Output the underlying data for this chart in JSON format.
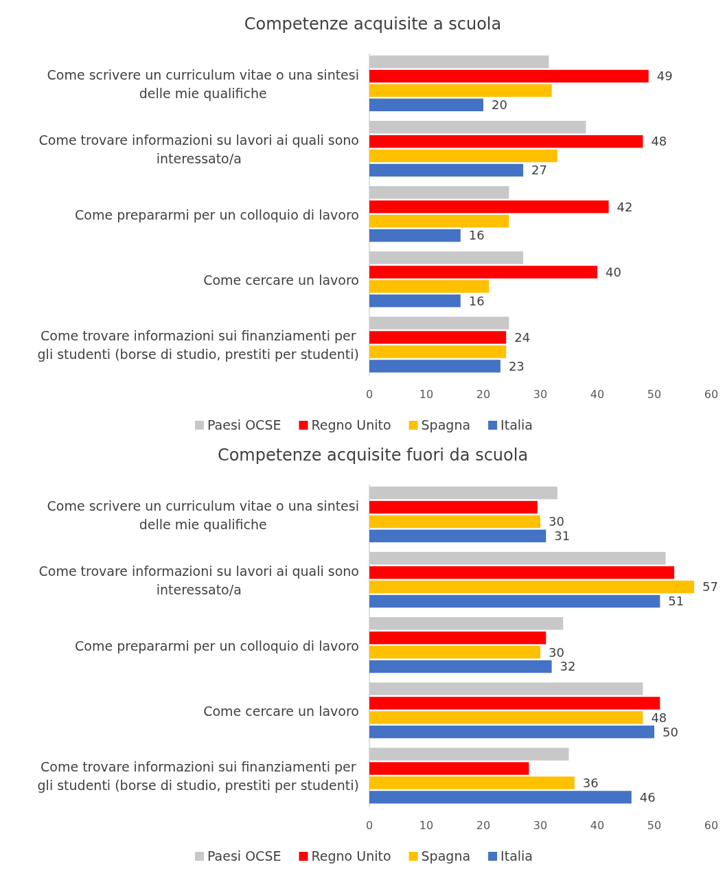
{
  "chart_data": [
    {
      "type": "bar",
      "orientation": "horizontal",
      "title": "Competenze acquisite a scuola",
      "categories": [
        "Come scrivere un curriculum vitae o una sintesi delle mie qualifiche",
        "Come trovare informazioni su lavori ai quali sono interessato/a",
        "Come prepararmi per un colloquio di lavoro",
        "Come cercare un lavoro",
        "Come trovare informazioni sui finanziamenti per gli studenti (borse di studio, prestiti per studenti)"
      ],
      "series": [
        {
          "name": "Paesi OCSE",
          "color": "#c8c8c8",
          "values": [
            31.5,
            38,
            24.5,
            27,
            24.5
          ]
        },
        {
          "name": "Regno Unito",
          "color": "#ff0000",
          "values": [
            49,
            48,
            42,
            40,
            24
          ],
          "value_labels": [
            "49",
            "48",
            "42",
            "40",
            "24"
          ]
        },
        {
          "name": "Spagna",
          "color": "#ffc000",
          "values": [
            32,
            33,
            24.5,
            21,
            24
          ]
        },
        {
          "name": "Italia",
          "color": "#4472c4",
          "values": [
            20,
            27,
            16,
            16,
            23
          ],
          "value_labels": [
            "20",
            "27",
            "16",
            "16",
            "23"
          ]
        }
      ],
      "xlim": [
        0,
        60
      ],
      "xticks": [
        0,
        10,
        20,
        30,
        40,
        50,
        60
      ],
      "legend": "bottom"
    },
    {
      "type": "bar",
      "orientation": "horizontal",
      "title": "Competenze acquisite fuori da scuola",
      "categories": [
        "Come scrivere un curriculum vitae o una sintesi delle mie qualifiche",
        "Come trovare informazioni su lavori ai quali sono interessato/a",
        "Come prepararmi per un colloquio di lavoro",
        "Come cercare un lavoro",
        "Come trovare informazioni sui finanziamenti per gli studenti (borse di studio, prestiti per studenti)"
      ],
      "series": [
        {
          "name": "Paesi OCSE",
          "color": "#c8c8c8",
          "values": [
            33,
            52,
            34,
            48,
            35
          ]
        },
        {
          "name": "Regno Unito",
          "color": "#ff0000",
          "values": [
            29.5,
            53.5,
            31,
            51,
            28
          ]
        },
        {
          "name": "Spagna",
          "color": "#ffc000",
          "values": [
            30,
            57,
            30,
            48,
            36
          ],
          "value_labels": [
            "30",
            "57",
            "30",
            "48",
            "36"
          ]
        },
        {
          "name": "Italia",
          "color": "#4472c4",
          "values": [
            31,
            51,
            32,
            50,
            46
          ],
          "value_labels": [
            "31",
            "51",
            "32",
            "50",
            "46"
          ]
        }
      ],
      "xlim": [
        0,
        60
      ],
      "xticks": [
        0,
        10,
        20,
        30,
        40,
        50,
        60
      ],
      "legend": "bottom"
    }
  ]
}
